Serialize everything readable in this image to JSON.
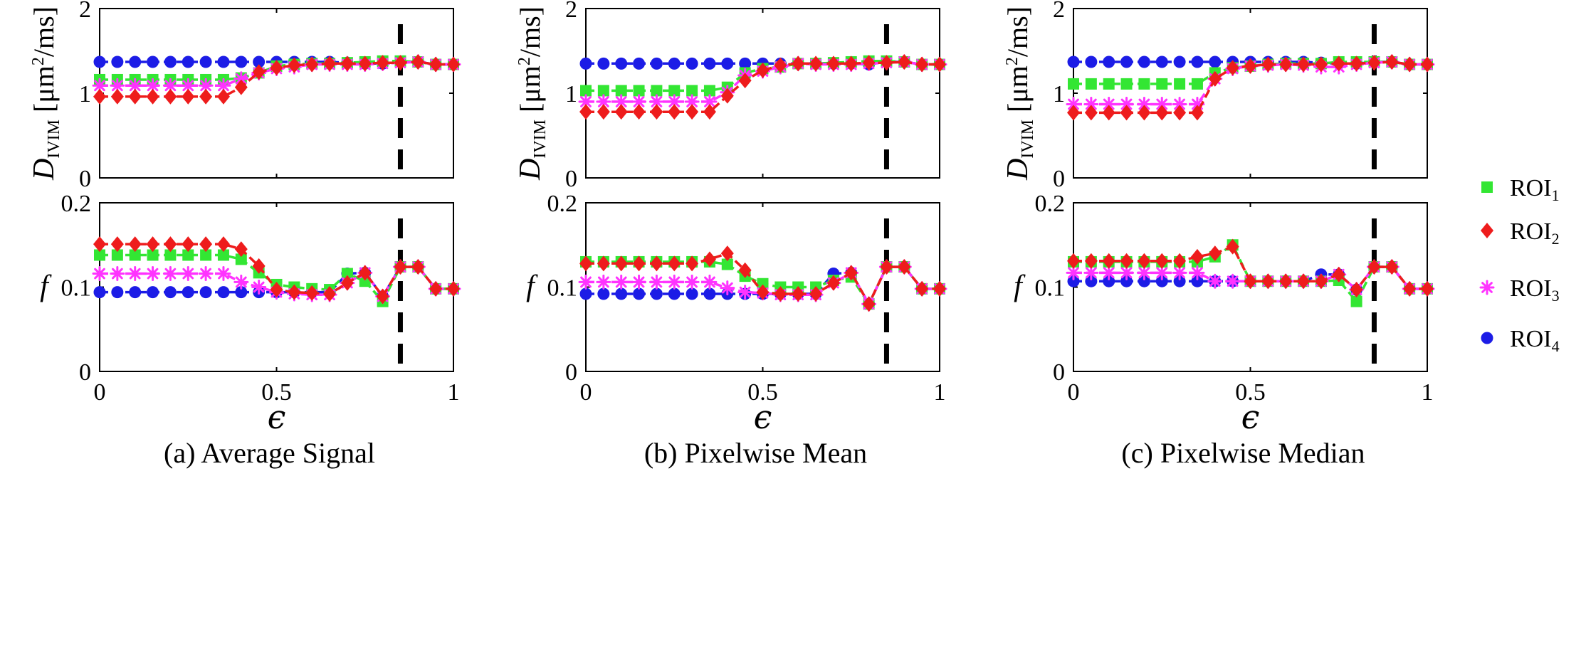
{
  "figure": {
    "colors": {
      "roi1": "#33e633",
      "roi2": "#ee1c1c",
      "roi3": "#ff33ff",
      "roi4": "#1c1ce6",
      "threshold": "#000000"
    },
    "legend": [
      {
        "label": "ROI",
        "sub": "1",
        "marker": "square",
        "color_key": "roi1"
      },
      {
        "label": "ROI",
        "sub": "2",
        "marker": "diamond",
        "color_key": "roi2"
      },
      {
        "label": "ROI",
        "sub": "3",
        "marker": "star",
        "color_key": "roi3"
      },
      {
        "label": "ROI",
        "sub": "4",
        "marker": "circle",
        "color_key": "roi4"
      }
    ],
    "threshold_epsilon": 0.85,
    "xlabel": "ϵ",
    "ylabel_D": {
      "symbol": "D",
      "sub": "IVIM",
      "unit_open": " [μm",
      "sup": "2",
      "unit_close": "/ms]"
    },
    "ylabel_f": "f"
  },
  "chart_data": [
    {
      "panel": "a",
      "row": "D",
      "type": "line",
      "caption": "(a) Average Signal",
      "x": [
        0,
        0.05,
        0.1,
        0.15,
        0.2,
        0.25,
        0.3,
        0.35,
        0.4,
        0.45,
        0.5,
        0.55,
        0.6,
        0.65,
        0.7,
        0.75,
        0.8,
        0.85,
        0.9,
        0.95,
        1
      ],
      "xlim": [
        0,
        1
      ],
      "ylim": [
        0,
        2
      ],
      "xticks": [
        0,
        0.5,
        1
      ],
      "yticks": [
        0,
        1,
        2
      ],
      "series": [
        {
          "name": "ROI1",
          "values": [
            1.16,
            1.16,
            1.16,
            1.16,
            1.16,
            1.16,
            1.16,
            1.16,
            1.18,
            1.24,
            1.32,
            1.34,
            1.35,
            1.35,
            1.36,
            1.37,
            1.38,
            1.38,
            1.37,
            1.34,
            1.34
          ]
        },
        {
          "name": "ROI2",
          "values": [
            0.96,
            0.96,
            0.96,
            0.96,
            0.96,
            0.96,
            0.96,
            0.96,
            1.07,
            1.25,
            1.3,
            1.33,
            1.34,
            1.35,
            1.35,
            1.35,
            1.36,
            1.36,
            1.37,
            1.34,
            1.34
          ]
        },
        {
          "name": "ROI3",
          "values": [
            1.09,
            1.09,
            1.09,
            1.09,
            1.09,
            1.09,
            1.09,
            1.09,
            1.17,
            1.24,
            1.29,
            1.31,
            1.34,
            1.34,
            1.34,
            1.34,
            1.35,
            1.36,
            1.37,
            1.34,
            1.34
          ]
        },
        {
          "name": "ROI4",
          "values": [
            1.37,
            1.37,
            1.37,
            1.37,
            1.37,
            1.37,
            1.37,
            1.37,
            1.37,
            1.37,
            1.37,
            1.37,
            1.37,
            1.37,
            1.36,
            1.35,
            1.35,
            1.37,
            1.37,
            1.34,
            1.34
          ]
        }
      ]
    },
    {
      "panel": "b",
      "row": "D",
      "type": "line",
      "caption": "(b) Pixelwise Mean",
      "x": [
        0,
        0.05,
        0.1,
        0.15,
        0.2,
        0.25,
        0.3,
        0.35,
        0.4,
        0.45,
        0.5,
        0.55,
        0.6,
        0.65,
        0.7,
        0.75,
        0.8,
        0.85,
        0.9,
        0.95,
        1
      ],
      "xlim": [
        0,
        1
      ],
      "ylim": [
        0,
        2
      ],
      "xticks": [
        0,
        0.5,
        1
      ],
      "yticks": [
        0,
        1,
        2
      ],
      "series": [
        {
          "name": "ROI1",
          "values": [
            1.03,
            1.03,
            1.03,
            1.03,
            1.03,
            1.03,
            1.03,
            1.03,
            1.07,
            1.24,
            1.29,
            1.31,
            1.35,
            1.35,
            1.36,
            1.37,
            1.38,
            1.38,
            1.37,
            1.34,
            1.34
          ]
        },
        {
          "name": "ROI2",
          "values": [
            0.78,
            0.78,
            0.78,
            0.78,
            0.78,
            0.78,
            0.78,
            0.78,
            0.97,
            1.15,
            1.27,
            1.33,
            1.35,
            1.35,
            1.35,
            1.35,
            1.36,
            1.36,
            1.37,
            1.34,
            1.34
          ]
        },
        {
          "name": "ROI3",
          "values": [
            0.9,
            0.9,
            0.9,
            0.9,
            0.9,
            0.9,
            0.9,
            0.9,
            1.01,
            1.21,
            1.26,
            1.31,
            1.35,
            1.34,
            1.34,
            1.34,
            1.35,
            1.36,
            1.37,
            1.34,
            1.34
          ]
        },
        {
          "name": "ROI4",
          "values": [
            1.35,
            1.35,
            1.35,
            1.35,
            1.35,
            1.35,
            1.35,
            1.35,
            1.35,
            1.35,
            1.35,
            1.35,
            1.35,
            1.35,
            1.35,
            1.35,
            1.34,
            1.37,
            1.37,
            1.34,
            1.34
          ]
        }
      ]
    },
    {
      "panel": "c",
      "row": "D",
      "type": "line",
      "caption": "(c) Pixelwise Median",
      "x": [
        0,
        0.05,
        0.1,
        0.15,
        0.2,
        0.25,
        0.3,
        0.35,
        0.4,
        0.45,
        0.5,
        0.55,
        0.6,
        0.65,
        0.7,
        0.75,
        0.8,
        0.85,
        0.9,
        0.95,
        1
      ],
      "xlim": [
        0,
        1
      ],
      "ylim": [
        0,
        2
      ],
      "xticks": [
        0,
        0.5,
        1
      ],
      "yticks": [
        0,
        1,
        2
      ],
      "series": [
        {
          "name": "ROI1",
          "values": [
            1.11,
            1.11,
            1.11,
            1.11,
            1.11,
            1.11,
            1.11,
            1.11,
            1.24,
            1.3,
            1.32,
            1.34,
            1.35,
            1.35,
            1.35,
            1.37,
            1.37,
            1.37,
            1.37,
            1.34,
            1.34
          ]
        },
        {
          "name": "ROI2",
          "values": [
            0.77,
            0.77,
            0.77,
            0.77,
            0.77,
            0.77,
            0.77,
            0.77,
            1.17,
            1.3,
            1.32,
            1.34,
            1.34,
            1.34,
            1.34,
            1.35,
            1.35,
            1.36,
            1.37,
            1.34,
            1.34
          ]
        },
        {
          "name": "ROI3",
          "values": [
            0.87,
            0.87,
            0.87,
            0.87,
            0.87,
            0.87,
            0.87,
            0.87,
            1.17,
            1.29,
            1.32,
            1.33,
            1.34,
            1.33,
            1.31,
            1.31,
            1.34,
            1.36,
            1.37,
            1.34,
            1.34
          ]
        },
        {
          "name": "ROI4",
          "values": [
            1.37,
            1.37,
            1.37,
            1.37,
            1.37,
            1.37,
            1.37,
            1.37,
            1.37,
            1.37,
            1.37,
            1.37,
            1.37,
            1.37,
            1.36,
            1.35,
            1.35,
            1.37,
            1.37,
            1.34,
            1.34
          ]
        }
      ]
    },
    {
      "panel": "a",
      "row": "f",
      "type": "line",
      "x": [
        0,
        0.05,
        0.1,
        0.15,
        0.2,
        0.25,
        0.3,
        0.35,
        0.4,
        0.45,
        0.5,
        0.55,
        0.6,
        0.65,
        0.7,
        0.75,
        0.8,
        0.85,
        0.9,
        0.95,
        1
      ],
      "xlim": [
        0,
        1
      ],
      "ylim": [
        0,
        0.2
      ],
      "xticks": [
        0,
        0.5,
        1
      ],
      "yticks": [
        0,
        0.1,
        0.2
      ],
      "series": [
        {
          "name": "ROI1",
          "values": [
            0.138,
            0.138,
            0.138,
            0.138,
            0.138,
            0.138,
            0.138,
            0.138,
            0.133,
            0.117,
            0.103,
            0.1,
            0.098,
            0.097,
            0.116,
            0.107,
            0.083,
            0.124,
            0.124,
            0.098,
            0.098
          ]
        },
        {
          "name": "ROI2",
          "values": [
            0.151,
            0.151,
            0.151,
            0.151,
            0.151,
            0.151,
            0.151,
            0.151,
            0.145,
            0.125,
            0.097,
            0.094,
            0.093,
            0.092,
            0.105,
            0.117,
            0.089,
            0.124,
            0.124,
            0.098,
            0.098
          ]
        },
        {
          "name": "ROI3",
          "values": [
            0.116,
            0.116,
            0.116,
            0.116,
            0.116,
            0.116,
            0.116,
            0.116,
            0.106,
            0.1,
            0.094,
            0.092,
            0.091,
            0.091,
            0.105,
            0.117,
            0.089,
            0.124,
            0.124,
            0.098,
            0.098
          ]
        },
        {
          "name": "ROI4",
          "values": [
            0.094,
            0.094,
            0.094,
            0.094,
            0.094,
            0.094,
            0.094,
            0.094,
            0.094,
            0.094,
            0.094,
            0.094,
            0.094,
            0.094,
            0.116,
            0.117,
            0.089,
            0.124,
            0.124,
            0.098,
            0.098
          ]
        }
      ]
    },
    {
      "panel": "b",
      "row": "f",
      "type": "line",
      "x": [
        0,
        0.05,
        0.1,
        0.15,
        0.2,
        0.25,
        0.3,
        0.35,
        0.4,
        0.45,
        0.5,
        0.55,
        0.6,
        0.65,
        0.7,
        0.75,
        0.8,
        0.85,
        0.9,
        0.95,
        1
      ],
      "xlim": [
        0,
        1
      ],
      "ylim": [
        0,
        0.2
      ],
      "xticks": [
        0,
        0.5,
        1
      ],
      "yticks": [
        0,
        0.1,
        0.2
      ],
      "series": [
        {
          "name": "ROI1",
          "values": [
            0.13,
            0.13,
            0.13,
            0.13,
            0.13,
            0.13,
            0.13,
            0.13,
            0.127,
            0.113,
            0.104,
            0.1,
            0.1,
            0.1,
            0.108,
            0.112,
            0.08,
            0.124,
            0.124,
            0.098,
            0.098
          ]
        },
        {
          "name": "ROI2",
          "values": [
            0.128,
            0.128,
            0.128,
            0.128,
            0.128,
            0.128,
            0.128,
            0.133,
            0.14,
            0.12,
            0.094,
            0.092,
            0.092,
            0.092,
            0.105,
            0.117,
            0.08,
            0.124,
            0.124,
            0.098,
            0.098
          ]
        },
        {
          "name": "ROI3",
          "values": [
            0.106,
            0.106,
            0.106,
            0.106,
            0.106,
            0.106,
            0.106,
            0.106,
            0.099,
            0.094,
            0.093,
            0.091,
            0.091,
            0.091,
            0.105,
            0.117,
            0.08,
            0.124,
            0.124,
            0.098,
            0.098
          ]
        },
        {
          "name": "ROI4",
          "values": [
            0.092,
            0.092,
            0.092,
            0.092,
            0.092,
            0.092,
            0.092,
            0.092,
            0.092,
            0.092,
            0.092,
            0.092,
            0.092,
            0.092,
            0.116,
            0.117,
            0.08,
            0.124,
            0.124,
            0.098,
            0.098
          ]
        }
      ]
    },
    {
      "panel": "c",
      "row": "f",
      "type": "line",
      "x": [
        0,
        0.05,
        0.1,
        0.15,
        0.2,
        0.25,
        0.3,
        0.35,
        0.4,
        0.45,
        0.5,
        0.55,
        0.6,
        0.65,
        0.7,
        0.75,
        0.8,
        0.85,
        0.9,
        0.95,
        1
      ],
      "xlim": [
        0,
        1
      ],
      "ylim": [
        0,
        0.2
      ],
      "xticks": [
        0,
        0.5,
        1
      ],
      "yticks": [
        0,
        0.1,
        0.2
      ],
      "series": [
        {
          "name": "ROI1",
          "values": [
            0.13,
            0.13,
            0.13,
            0.13,
            0.13,
            0.13,
            0.13,
            0.13,
            0.136,
            0.15,
            0.107,
            0.107,
            0.107,
            0.107,
            0.107,
            0.108,
            0.083,
            0.124,
            0.124,
            0.098,
            0.098
          ]
        },
        {
          "name": "ROI2",
          "values": [
            0.131,
            0.131,
            0.131,
            0.131,
            0.131,
            0.131,
            0.131,
            0.136,
            0.14,
            0.148,
            0.107,
            0.107,
            0.107,
            0.107,
            0.107,
            0.115,
            0.097,
            0.124,
            0.124,
            0.098,
            0.098
          ]
        },
        {
          "name": "ROI3",
          "values": [
            0.117,
            0.117,
            0.117,
            0.117,
            0.117,
            0.117,
            0.117,
            0.117,
            0.107,
            0.107,
            0.107,
            0.107,
            0.107,
            0.107,
            0.107,
            0.115,
            0.097,
            0.124,
            0.124,
            0.098,
            0.098
          ]
        },
        {
          "name": "ROI4",
          "values": [
            0.107,
            0.107,
            0.107,
            0.107,
            0.107,
            0.107,
            0.107,
            0.107,
            0.107,
            0.107,
            0.107,
            0.107,
            0.107,
            0.107,
            0.115,
            0.115,
            0.097,
            0.124,
            0.124,
            0.098,
            0.098
          ]
        }
      ]
    }
  ]
}
